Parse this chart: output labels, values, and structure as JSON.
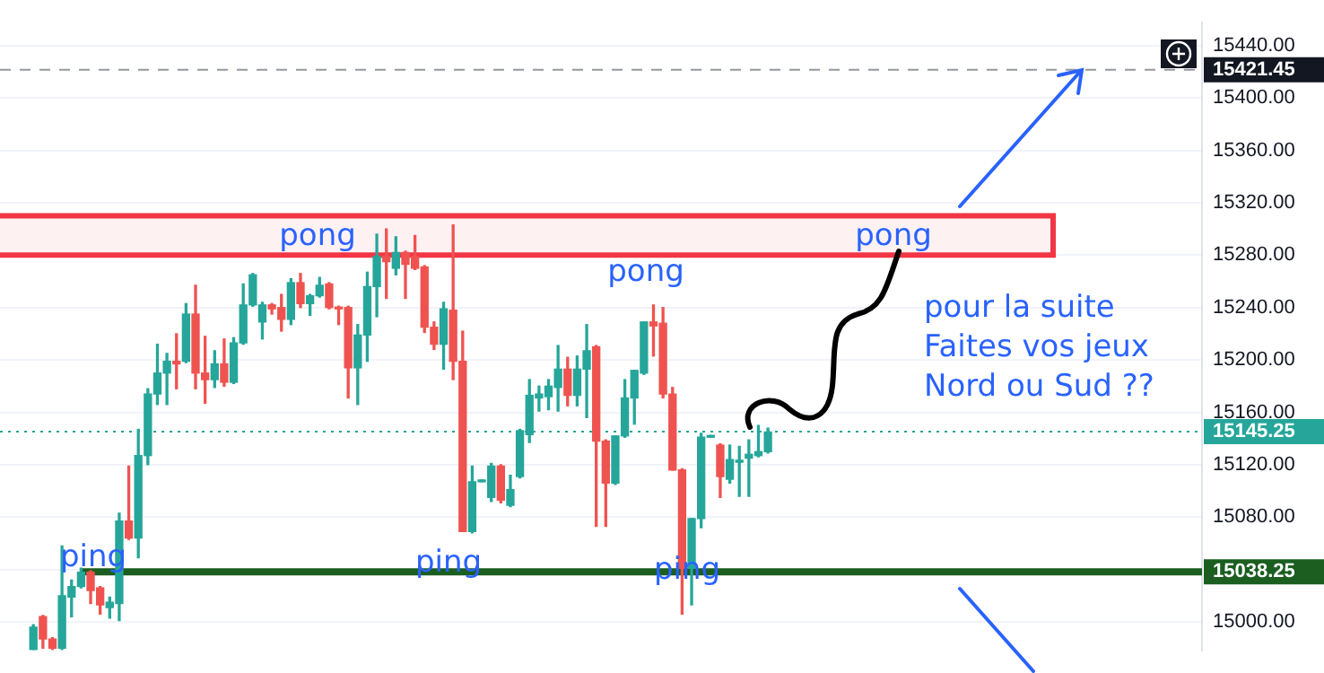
{
  "chart_data": {
    "type": "candlestick",
    "tick_labels": "y",
    "grid": "y",
    "legend": false,
    "categories": [
      null,
      null,
      null,
      null,
      null,
      null,
      null,
      null,
      null,
      null,
      null,
      null,
      null,
      null,
      null,
      null,
      null,
      null,
      null,
      null,
      null,
      null,
      null,
      null,
      null,
      null,
      null,
      null,
      null,
      null,
      null,
      null,
      null,
      null,
      null,
      null,
      null,
      null,
      null,
      null,
      null,
      null,
      null,
      null,
      null,
      null,
      null,
      null,
      null,
      null,
      null,
      null,
      null,
      null,
      null,
      null,
      null,
      null,
      null,
      null,
      null,
      null,
      null,
      null,
      null,
      null,
      null,
      null,
      null,
      null,
      null,
      null,
      null,
      null,
      null,
      null,
      null,
      null,
      null,
      null,
      null,
      null,
      null,
      null,
      null,
      null,
      null,
      null,
      null,
      null,
      null,
      null,
      null,
      null,
      null,
      null,
      null,
      null,
      null,
      null,
      null,
      null,
      null,
      null,
      null,
      null,
      null,
      null,
      null,
      null,
      null,
      null,
      null,
      null,
      null,
      null,
      null,
      null,
      null,
      null,
      null,
      null,
      null,
      null,
      null,
      null
    ],
    "ohlc": [
      null,
      null,
      null,
      [
        14979,
        14998,
        14979,
        14996
      ],
      [
        15004,
        15005,
        14980,
        14987
      ],
      [
        14987,
        14988,
        14979,
        14980
      ],
      [
        14980,
        15058,
        14979,
        15020
      ],
      [
        15019,
        15032,
        15004,
        15027
      ],
      [
        15027,
        15041,
        15026,
        15038
      ],
      [
        15038,
        15039,
        15014,
        15024
      ],
      [
        15026,
        15027,
        15006,
        15013
      ],
      [
        15011,
        15019,
        15003,
        15015
      ],
      [
        15014,
        15083,
        15001,
        15077
      ],
      [
        15077,
        15119,
        15063,
        15064
      ],
      [
        15064,
        15147,
        15049,
        15127
      ],
      [
        15127,
        15178,
        15120,
        15174
      ],
      [
        15174,
        15212,
        15166,
        15190
      ],
      [
        15190,
        15205,
        15166,
        15199
      ],
      [
        15199,
        15220,
        15178,
        15197
      ],
      [
        15199,
        15243,
        15198,
        15235
      ],
      [
        15235,
        15257,
        15178,
        15190
      ],
      [
        15190,
        15218,
        15167,
        15185
      ],
      [
        15185,
        15207,
        15179,
        15197
      ],
      [
        15197,
        15216,
        15180,
        15183
      ],
      [
        15183,
        15217,
        15182,
        15213
      ],
      [
        15213,
        15258,
        15212,
        15242
      ],
      [
        15242,
        15266,
        15241,
        15265
      ],
      [
        15229,
        15244,
        15216,
        15242
      ],
      [
        15242,
        15243,
        15235,
        15239
      ],
      [
        15240,
        15250,
        15222,
        15231
      ],
      [
        15231,
        15262,
        15227,
        15259
      ],
      [
        15259,
        15266,
        15240,
        15243
      ],
      [
        15243,
        15250,
        15234,
        15249
      ],
      [
        15249,
        15263,
        15248,
        15257
      ],
      [
        15258,
        15259,
        15239,
        15240
      ],
      [
        15240,
        15241,
        15227,
        15239
      ],
      [
        15240,
        15241,
        15171,
        15194
      ],
      [
        15194,
        15227,
        15166,
        15219
      ],
      [
        15219,
        15267,
        15199,
        15256
      ],
      [
        15256,
        15296,
        15233,
        15279
      ],
      [
        15279,
        15300,
        15247,
        15275
      ],
      [
        15270,
        15294,
        15265,
        15282
      ],
      [
        15282,
        15283,
        15247,
        15273
      ],
      [
        15279,
        15295,
        15269,
        15270
      ],
      [
        15271,
        15272,
        15221,
        15225
      ],
      [
        15225,
        15229,
        15208,
        15212
      ],
      [
        15212,
        15244,
        15193,
        15239
      ],
      [
        15238,
        15303,
        15185,
        15199
      ],
      [
        15199,
        15222,
        15069,
        15069
      ],
      [
        15069,
        15119,
        15068,
        15107
      ],
      [
        15107,
        15107,
        15107,
        15107
      ],
      [
        15095,
        15121,
        15092,
        15119
      ],
      [
        15119,
        15120,
        15091,
        15093
      ],
      [
        15089,
        15112,
        15088,
        15101
      ],
      [
        15111,
        15147,
        15110,
        15146
      ],
      [
        15143,
        15185,
        15137,
        15173
      ],
      [
        15171,
        15180,
        15161,
        15174
      ],
      [
        15172,
        15185,
        15162,
        15180
      ],
      [
        15179,
        15211,
        15161,
        15193
      ],
      [
        15193,
        15202,
        15165,
        15173
      ],
      [
        15173,
        15203,
        15165,
        15193
      ],
      [
        15193,
        15227,
        15156,
        15207
      ],
      [
        15210,
        15211,
        15073,
        15138
      ],
      [
        15138,
        15139,
        15073,
        15106
      ],
      [
        15106,
        15142,
        15105,
        15142
      ],
      [
        15142,
        15185,
        15141,
        15171
      ],
      [
        15171,
        15192,
        15151,
        15192
      ],
      [
        15190,
        15229,
        15189,
        15229
      ],
      [
        15229,
        15242,
        15203,
        15226
      ],
      [
        15228,
        15240,
        15171,
        15174
      ],
      [
        15174,
        15179,
        15116,
        15116
      ],
      [
        15116,
        15117,
        15006,
        15041
      ],
      [
        15041,
        15079,
        15013,
        15079
      ],
      [
        15079,
        15144,
        15072,
        15141
      ],
      [
        15141,
        15141,
        15141,
        15141
      ],
      [
        15135,
        15136,
        15095,
        15111
      ],
      [
        15109,
        15135,
        15106,
        15124
      ],
      [
        15122,
        15134,
        15096,
        15122
      ],
      [
        15125,
        15139,
        15096,
        15128
      ],
      [
        15127,
        15150,
        15126,
        15130
      ],
      [
        15130,
        15148,
        15129,
        15145
      ],
      null,
      null,
      null,
      null,
      null,
      null,
      null,
      null,
      null,
      null,
      null,
      null,
      null,
      null,
      null,
      null,
      null,
      null,
      null,
      null,
      null,
      null,
      null,
      null,
      null,
      null,
      null,
      null,
      null,
      null,
      null,
      null,
      null,
      null,
      null,
      null,
      null,
      null,
      null,
      null,
      null,
      null,
      null,
      null,
      null
    ],
    "ylim": [
      14978.3,
      15457.5
    ],
    "yticks": [
      {
        "value": 15000,
        "label": "15000.00"
      },
      {
        "value": 15040,
        "label": null
      },
      {
        "value": 15080,
        "label": "15080.00"
      },
      {
        "value": 15120,
        "label": "15120.00"
      },
      {
        "value": 15160,
        "label": "15160.00"
      },
      {
        "value": 15200,
        "label": "15200.00"
      },
      {
        "value": 15240,
        "label": "15240.00"
      },
      {
        "value": 15280,
        "label": "15280.00"
      },
      {
        "value": 15320,
        "label": "15320.00"
      },
      {
        "value": 15360,
        "label": "15360.00"
      },
      {
        "value": 15400,
        "label": "15400.00"
      },
      {
        "value": 15440,
        "label": "15440.00"
      }
    ],
    "ref_lines": [
      {
        "axis": "y",
        "value": 15421.45,
        "label": "15421.45",
        "color": "#9598a1",
        "line_style": "dashed"
      },
      {
        "axis": "y",
        "value": 15145.25,
        "label": "15145.25",
        "color": "#26a69a",
        "line_style": "dotted"
      },
      {
        "axis": "y",
        "value": 15038.25,
        "label": "15038.25",
        "color": "#1b5e20",
        "line_style": "solid"
      }
    ],
    "bands": [
      {
        "axis": "y",
        "from": 15280,
        "to": 15310,
        "color": "#f23645"
      }
    ],
    "annotations": [
      "pong",
      "pong",
      "pong",
      "ping",
      "ping",
      "ping",
      "pour la suite\nFaites vos jeux\nNord ou Sud ??"
    ]
  }
}
